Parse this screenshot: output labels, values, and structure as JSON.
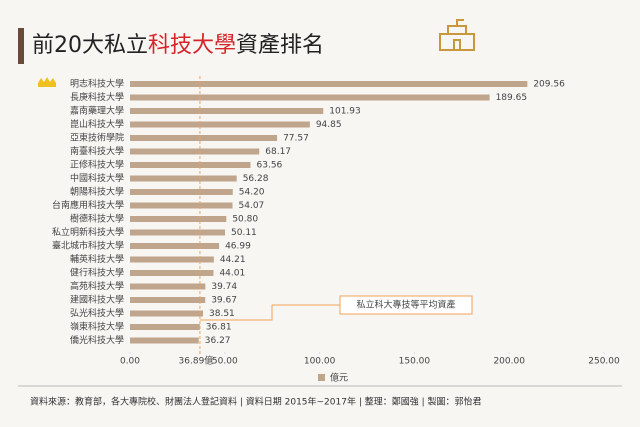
{
  "chart_data": {
    "type": "hbar",
    "title_parts": [
      "前20大私立",
      "科技大學",
      "資產排名"
    ],
    "categories": [
      "明志科技大學",
      "長庚科技大學",
      "嘉南藥理大學",
      "崑山科技大學",
      "亞東技術學院",
      "南臺科技大學",
      "正修科技大學",
      "中國科技大學",
      "朝陽科技大學",
      "台南應用科技大學",
      "樹德科技大學",
      "私立明新科技大學",
      "臺北城市科技大學",
      "輔英科技大學",
      "健行科技大學",
      "高苑科技大學",
      "建國科技大學",
      "弘光科技大學",
      "嶺東科技大學",
      "僑光科技大學"
    ],
    "series": [
      {
        "name": "億元",
        "color": "#bfa58c",
        "values": [
          209.56,
          189.65,
          101.93,
          94.85,
          77.57,
          68.17,
          63.56,
          56.28,
          54.2,
          54.07,
          50.8,
          50.11,
          46.99,
          44.21,
          44.01,
          39.74,
          39.67,
          38.51,
          36.81,
          36.27
        ],
        "value_labels": [
          "209.56",
          "189.65",
          "101.93",
          "94.85",
          "77.57",
          "68.17",
          "63.56",
          "56.28",
          "54.20",
          "54.07",
          "50.80",
          "50.11",
          "46.99",
          "44.21",
          "44.01",
          "39.74",
          "39.67",
          "38.51",
          "36.81",
          "36.27"
        ]
      }
    ],
    "xlim": [
      0,
      250
    ],
    "xticks": [
      {
        "value": 0,
        "label": "0.00"
      },
      {
        "value": 50,
        "label": "50.00"
      },
      {
        "value": 100,
        "label": "100.00"
      },
      {
        "value": 150,
        "label": "150.00"
      },
      {
        "value": 200,
        "label": "200.00"
      },
      {
        "value": 250,
        "label": "250.00"
      }
    ],
    "average": {
      "value": 36.89,
      "label": "36.89億",
      "annotation": "私立科大專技等平均資產",
      "color": "#f0a35a"
    },
    "source": "資料來源：教育部，各大專院校、財團法人登記資料 | 資料日期 2015年~2017年 | 整理：鄭國強 | 製圖：郭怡君"
  }
}
